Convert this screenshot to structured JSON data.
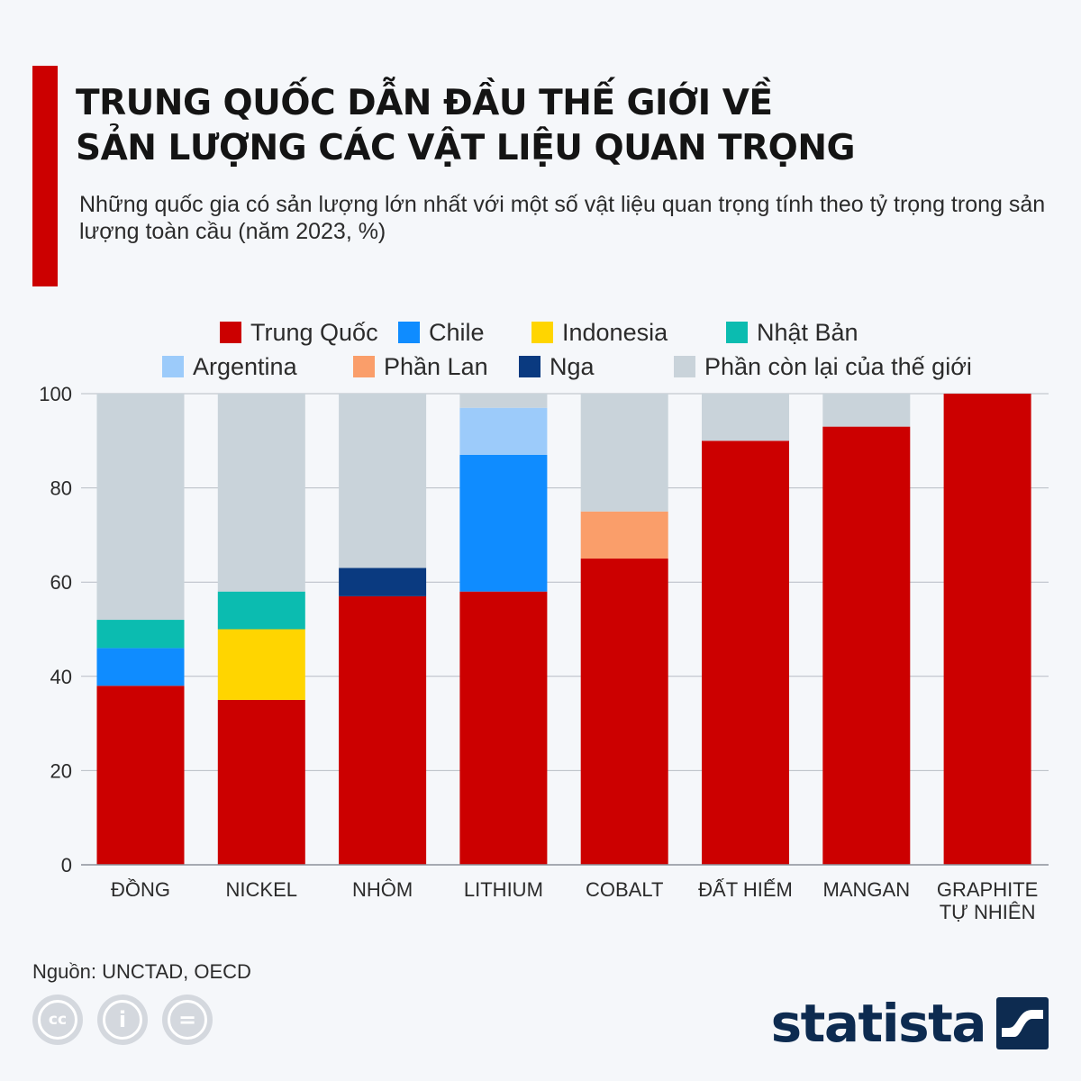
{
  "header": {
    "title_line1": "TRUNG QUỐC DẪN ĐẦU THẾ GIỚI VỀ",
    "title_line2": "SẢN LƯỢNG CÁC VẬT LIỆU QUAN TRỌNG",
    "subtitle": "Những quốc gia có sản lượng lớn nhất với một số vật liệu quan trọng tính theo tỷ trọng trong sản lượng toàn cầu (năm 2023, %)"
  },
  "colors": {
    "accent": "#cc0000",
    "grid": "#b7bcc4",
    "brand": "#0d2b50"
  },
  "chart_data": {
    "type": "bar",
    "stacked": true,
    "title": "TRUNG QUỐC DẪN ĐẦU THẾ GIỚI VỀ SẢN LƯỢNG CÁC VẬT LIỆU QUAN TRỌNG",
    "xlabel": "",
    "ylabel": "",
    "ylim": [
      0,
      100
    ],
    "yticks": [
      0,
      20,
      40,
      60,
      80,
      100
    ],
    "grid": true,
    "legend_position": "top",
    "categories": [
      [
        "ĐỒNG"
      ],
      [
        "NICKEL"
      ],
      [
        "NHÔM"
      ],
      [
        "LITHIUM"
      ],
      [
        "COBALT"
      ],
      [
        "ĐẤT HIẾM"
      ],
      [
        "MANGAN"
      ],
      [
        "GRAPHITE",
        "TỰ NHIÊN"
      ]
    ],
    "series": [
      {
        "name": "Trung Quốc",
        "color": "#cc0000",
        "values": [
          38,
          35,
          57,
          58,
          65,
          90,
          93,
          100
        ]
      },
      {
        "name": "Chile",
        "color": "#0f8cff",
        "values": [
          8,
          0,
          0,
          29,
          0,
          0,
          0,
          0
        ]
      },
      {
        "name": "Indonesia",
        "color": "#ffd500",
        "values": [
          0,
          15,
          0,
          0,
          0,
          0,
          0,
          0
        ]
      },
      {
        "name": "Nhật Bản",
        "color": "#0bbcb0",
        "values": [
          6,
          8,
          0,
          0,
          0,
          0,
          0,
          0
        ]
      },
      {
        "name": "Argentina",
        "color": "#9ccbfa",
        "values": [
          0,
          0,
          0,
          10,
          0,
          0,
          0,
          0
        ]
      },
      {
        "name": "Phần Lan",
        "color": "#fa9e6a",
        "values": [
          0,
          0,
          0,
          0,
          10,
          0,
          0,
          0
        ]
      },
      {
        "name": "Nga",
        "color": "#0a3a80",
        "values": [
          0,
          0,
          6,
          0,
          0,
          0,
          0,
          0
        ]
      },
      {
        "name": "Phần còn lại của thế giới",
        "color": "#c9d3da",
        "values": [
          48,
          42,
          37,
          3,
          25,
          10,
          7,
          0
        ]
      }
    ]
  },
  "footer": {
    "source_label": "Nguồn:",
    "source_value": "UNCTAD, OECD",
    "cc_icons": [
      {
        "name": "cc-icon",
        "glyph": "cc"
      },
      {
        "name": "attribution-icon",
        "glyph": "i"
      },
      {
        "name": "noderivs-icon",
        "glyph": "="
      }
    ],
    "brand_name": "statista"
  }
}
